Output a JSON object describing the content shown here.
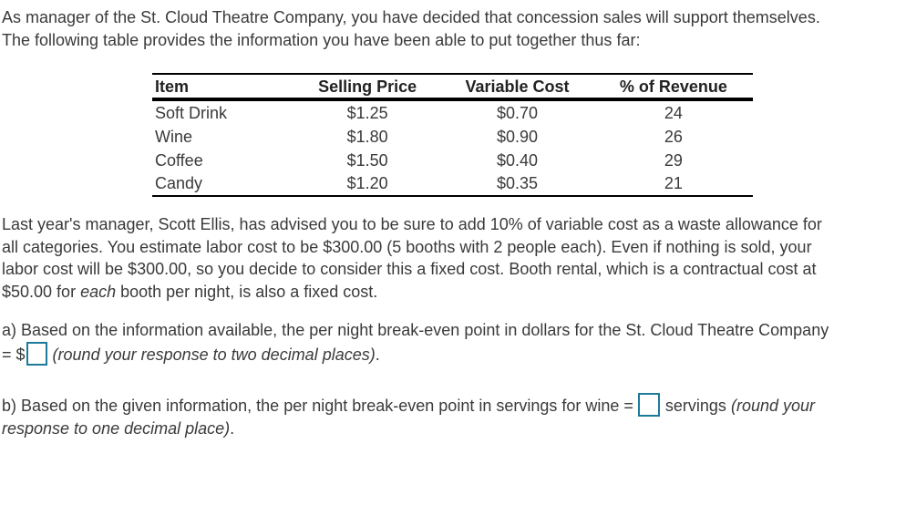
{
  "intro": {
    "line1": "As manager of the St. Cloud Theatre Company, you have decided that concession sales will support themselves.",
    "line2": "The following table provides the information you have been able to put together thus far:"
  },
  "table": {
    "headers": [
      "Item",
      "Selling Price",
      "Variable Cost",
      "% of Revenue"
    ],
    "rows": [
      [
        "Soft Drink",
        "$1.25",
        "$0.70",
        "24"
      ],
      [
        "Wine",
        "$1.80",
        "$0.90",
        "26"
      ],
      [
        "Coffee",
        "$1.50",
        "$0.40",
        "29"
      ],
      [
        "Candy",
        "$1.20",
        "$0.35",
        "21"
      ]
    ]
  },
  "body": {
    "line1": "Last year's manager, Scott Ellis, has advised you to be sure to add 10% of variable cost as a waste allowance for",
    "line2": "all categories. You estimate labor cost to be $300.00 (5 booths with 2 people each). Even if nothing is sold, your",
    "line3": "labor cost will be $300.00, so you decide to consider this a fixed cost. Booth rental, which is a contractual cost at",
    "line4_pre": "$50.00 for ",
    "line4_em": "each",
    "line4_post": " booth per night, is also a fixed cost."
  },
  "question_a": {
    "line1": "a) Based on the information available, the per night break-even point in dollars for the St. Cloud Theatre Company",
    "prefix": "= $",
    "answer_value": "",
    "hint": "(round your response to two decimal places)",
    "suffix": "."
  },
  "question_b": {
    "line1_pre": "b) Based on the given information, the per night break-even point in servings for wine =",
    "answer_value": "",
    "unit": "servings",
    "hint_part1": "(round your",
    "hint_part2": "response to one decimal place)",
    "suffix": "."
  },
  "colors": {
    "text": "#3a3a3a",
    "input_border": "#1f7a99",
    "table_rule": "#000000"
  }
}
